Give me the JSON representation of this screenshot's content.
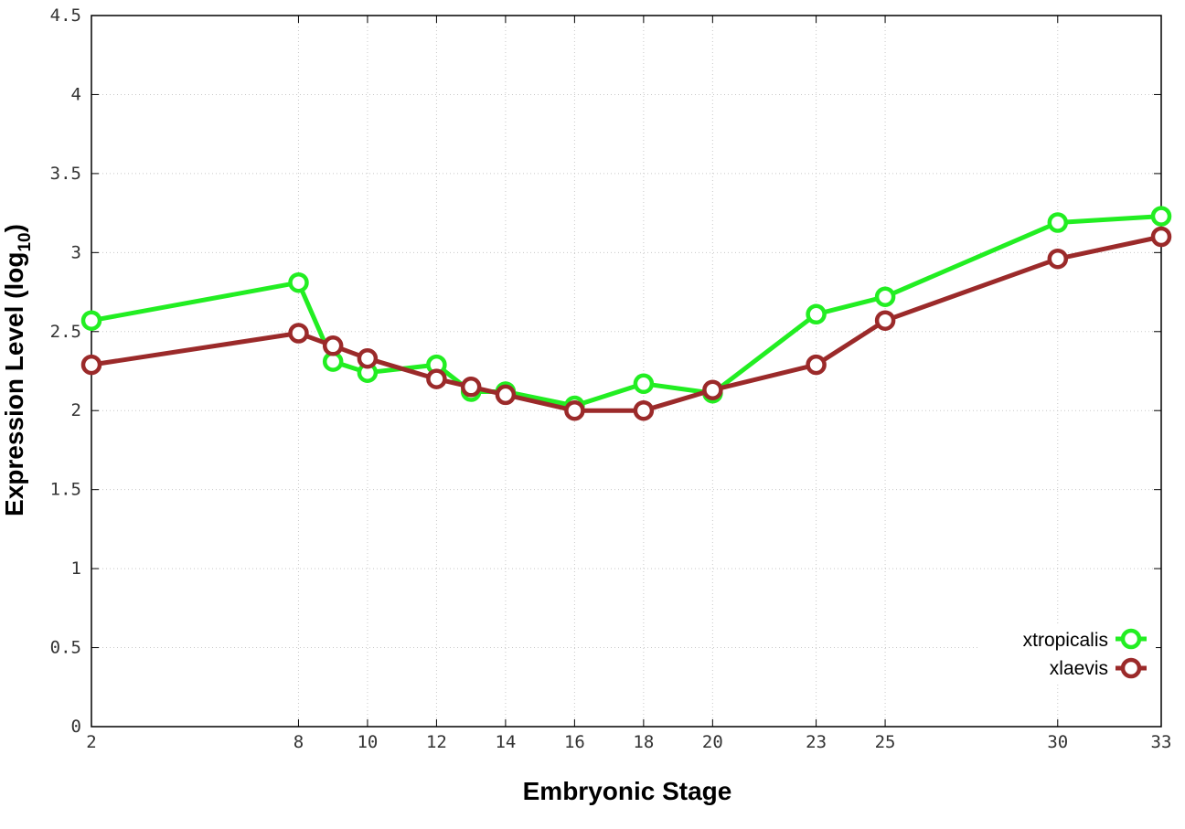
{
  "chart_data": {
    "type": "line",
    "xlabel": "Embryonic Stage",
    "ylabel": "Expression Level (log",
    "ylabel_sub": "10",
    "ylabel_end": ")",
    "xlim": [
      2,
      33
    ],
    "ylim": [
      0,
      4.5
    ],
    "x_ticks": [
      2,
      8,
      10,
      12,
      14,
      16,
      18,
      20,
      23,
      25,
      30,
      33
    ],
    "x_tick_labels": [
      "2",
      "8",
      "10",
      "12",
      "14",
      "16",
      "18",
      "20",
      "23",
      "25",
      "30",
      "33"
    ],
    "y_ticks": [
      0,
      0.5,
      1,
      1.5,
      2,
      2.5,
      3,
      3.5,
      4,
      4.5
    ],
    "y_tick_labels": [
      "0",
      "0.5",
      "1",
      "1.5",
      "2",
      "2.5",
      "3",
      "3.5",
      "4",
      "4.5"
    ],
    "grid": true,
    "legend_position": "bottom-right",
    "x": [
      2,
      8,
      9,
      10,
      12,
      13,
      14,
      16,
      18,
      20,
      23,
      25,
      30,
      33
    ],
    "series": [
      {
        "name": "xtropicalis",
        "color": "#22ee22",
        "values": [
          2.57,
          2.81,
          2.31,
          2.24,
          2.29,
          2.12,
          2.12,
          2.03,
          2.17,
          2.11,
          2.61,
          2.72,
          3.19,
          3.23
        ]
      },
      {
        "name": "xlaevis",
        "color": "#9b2a2a",
        "values": [
          2.29,
          2.49,
          2.41,
          2.33,
          2.2,
          2.15,
          2.1,
          2.0,
          2.0,
          2.13,
          2.29,
          2.57,
          2.96,
          3.1
        ]
      }
    ]
  }
}
